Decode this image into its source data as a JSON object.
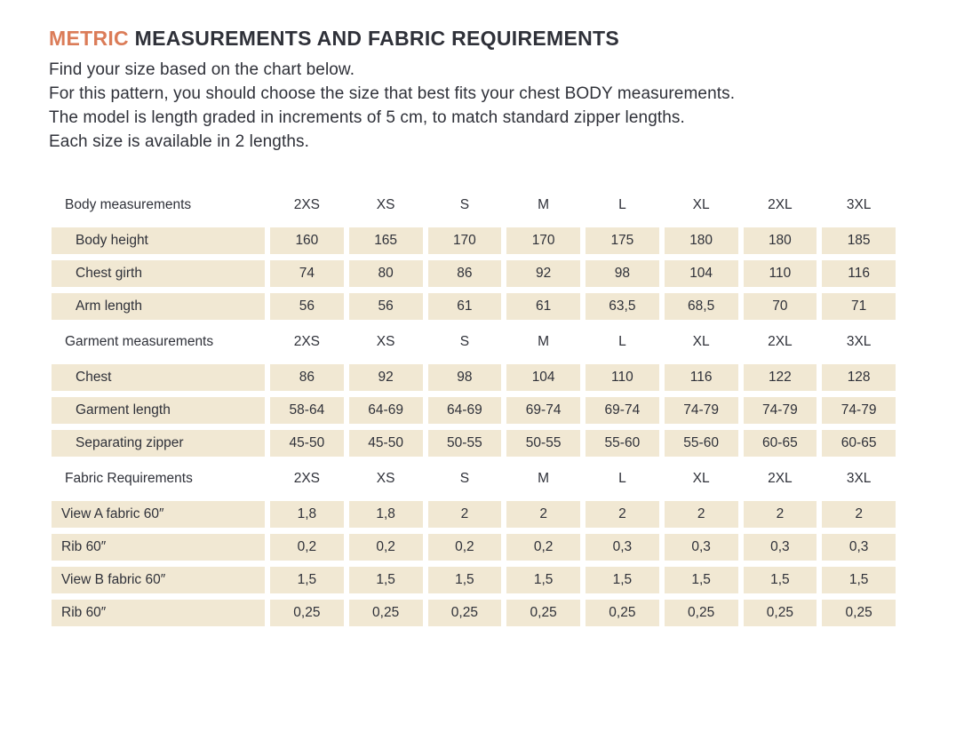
{
  "page": {
    "title": {
      "highlight": "METRIC",
      "rest": " MEASUREMENTS AND FABRIC REQUIREMENTS"
    },
    "intro_lines": [
      "Find your size based on the chart below.",
      "For this pattern, you should choose the size that best fits your chest BODY measurements.",
      "The model is length graded in increments of 5 cm, to match standard zipper lengths.",
      "Each size is available in 2 lengths."
    ]
  },
  "colors": {
    "accent": "#db7c58",
    "text": "#2f3139",
    "row_background": "#f1e8d3",
    "page_background": "#ffffff"
  },
  "sizes": [
    "2XS",
    "XS",
    "S",
    "M",
    "L",
    "XL",
    "2XL",
    "3XL"
  ],
  "table": {
    "sections": [
      {
        "header": "Body measurements",
        "rows": [
          {
            "label": "Body height",
            "values": [
              "160",
              "165",
              "170",
              "170",
              "175",
              "180",
              "180",
              "185"
            ]
          },
          {
            "label": "Chest girth",
            "values": [
              "74",
              "80",
              "86",
              "92",
              "98",
              "104",
              "110",
              "116"
            ]
          },
          {
            "label": "Arm length",
            "values": [
              "56",
              "56",
              "61",
              "61",
              "63,5",
              "68,5",
              "70",
              "71"
            ]
          }
        ]
      },
      {
        "header": "Garment measurements",
        "rows": [
          {
            "label": "Chest",
            "values": [
              "86",
              "92",
              "98",
              "104",
              "110",
              "116",
              "122",
              "128"
            ]
          },
          {
            "label": "Garment length",
            "values": [
              "58-64",
              "64-69",
              "64-69",
              "69-74",
              "69-74",
              "74-79",
              "74-79",
              "74-79"
            ]
          },
          {
            "label": "Separating zipper",
            "values": [
              "45-50",
              "45-50",
              "50-55",
              "50-55",
              "55-60",
              "55-60",
              "60-65",
              "60-65"
            ]
          }
        ]
      },
      {
        "header": "Fabric Requirements",
        "rows": [
          {
            "label": "View A fabric 60″",
            "values": [
              "1,8",
              "1,8",
              "2",
              "2",
              "2",
              "2",
              "2",
              "2"
            ]
          },
          {
            "label": "Rib 60″",
            "values": [
              "0,2",
              "0,2",
              "0,2",
              "0,2",
              "0,3",
              "0,3",
              "0,3",
              "0,3"
            ]
          },
          {
            "label": "View B fabric 60″",
            "values": [
              "1,5",
              "1,5",
              "1,5",
              "1,5",
              "1,5",
              "1,5",
              "1,5",
              "1,5"
            ]
          },
          {
            "label": "Rib 60″",
            "values": [
              "0,25",
              "0,25",
              "0,25",
              "0,25",
              "0,25",
              "0,25",
              "0,25",
              "0,25"
            ]
          }
        ]
      }
    ]
  }
}
